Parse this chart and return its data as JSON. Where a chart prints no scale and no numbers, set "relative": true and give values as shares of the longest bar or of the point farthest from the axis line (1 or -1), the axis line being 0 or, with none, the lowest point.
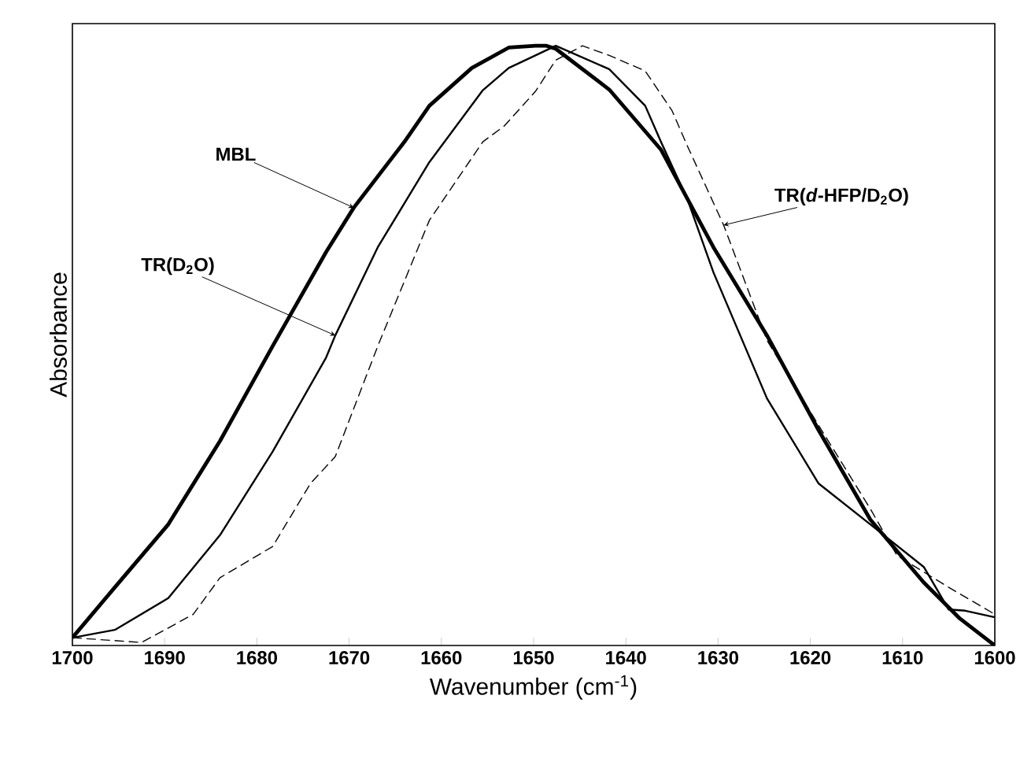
{
  "chart_data": {
    "type": "line",
    "xlabel": "Wavenumber (cm$^{-1}$)",
    "ylabel": "Absorbance",
    "relative": true,
    "xlim": [
      1700,
      1600
    ],
    "xticks": [
      1700,
      1690,
      1680,
      1670,
      1660,
      1650,
      1640,
      1630,
      1620,
      1610,
      1600
    ],
    "marker": "none",
    "series": [
      {
        "name": "MBL",
        "color": "#000000",
        "line_style": "solid",
        "x": [
          1700,
          1695.4,
          1689.6,
          1684.0,
          1678.3,
          1672.5,
          1669.5,
          1664.0,
          1661.3,
          1656.7,
          1652.7,
          1649.8,
          1648.6,
          1647.6,
          1641.8,
          1636.2,
          1630.5,
          1624.7,
          1619.1,
          1613.5,
          1607.7,
          1603.8,
          1600
        ],
        "values": [
          0.013,
          0.097,
          0.202,
          0.341,
          0.499,
          0.656,
          0.73,
          0.84,
          0.9,
          0.963,
          0.997,
          1.0,
          1.0,
          0.995,
          0.927,
          0.827,
          0.664,
          0.517,
          0.359,
          0.21,
          0.105,
          0.045,
          0.0
        ]
      },
      {
        "name": "TR(D$_{2}$O)",
        "color": "#000000",
        "line_style": "solid",
        "x": [
          1700,
          1695.4,
          1689.6,
          1684.0,
          1678.3,
          1672.5,
          1671.5,
          1666.9,
          1661.3,
          1655.5,
          1652.7,
          1649.8,
          1647.6,
          1641.8,
          1637.9,
          1636.2,
          1633.3,
          1630.5,
          1624.7,
          1619.1,
          1613.5,
          1607.7,
          1605.0,
          1603.2,
          1600
        ],
        "values": [
          0.013,
          0.026,
          0.079,
          0.184,
          0.323,
          0.48,
          0.517,
          0.664,
          0.806,
          0.926,
          0.963,
          0.984,
          1.0,
          0.961,
          0.9,
          0.84,
          0.743,
          0.622,
          0.412,
          0.27,
          0.202,
          0.131,
          0.06,
          0.058,
          0.047
        ]
      },
      {
        "name": "TR(*d*-HFP/D$_{2}$O)",
        "color": "#000000",
        "line_style": "dashed",
        "x": [
          1700,
          1692.5,
          1686.9,
          1684.0,
          1678.3,
          1674.2,
          1671.5,
          1666.9,
          1661.3,
          1655.5,
          1653.2,
          1649.8,
          1647.6,
          1644.7,
          1641.8,
          1637.9,
          1635.0,
          1633.3,
          1629.4,
          1624.7,
          1619.1,
          1613.5,
          1610.6,
          1605.0,
          1600
        ],
        "values": [
          0.013,
          0.005,
          0.052,
          0.113,
          0.165,
          0.27,
          0.315,
          0.499,
          0.709,
          0.84,
          0.866,
          0.924,
          0.976,
          1.0,
          0.984,
          0.958,
          0.892,
          0.832,
          0.701,
          0.509,
          0.367,
          0.228,
          0.15,
          0.097,
          0.052
        ]
      }
    ]
  }
}
